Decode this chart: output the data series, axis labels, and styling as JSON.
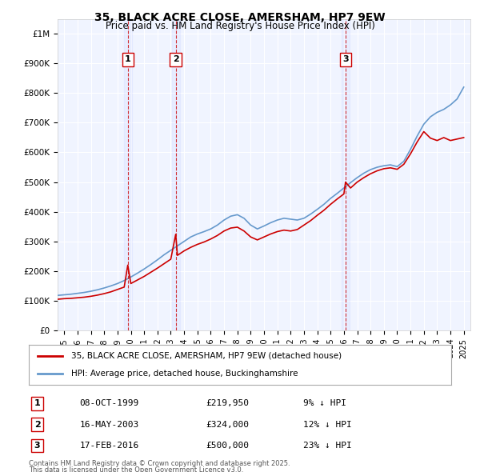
{
  "title": "35, BLACK ACRE CLOSE, AMERSHAM, HP7 9EW",
  "subtitle": "Price paid vs. HM Land Registry's House Price Index (HPI)",
  "legend_line1": "35, BLACK ACRE CLOSE, AMERSHAM, HP7 9EW (detached house)",
  "legend_line2": "HPI: Average price, detached house, Buckinghamshire",
  "footer1": "Contains HM Land Registry data © Crown copyright and database right 2025.",
  "footer2": "This data is licensed under the Open Government Licence v3.0.",
  "transaction_labels": [
    {
      "num": "1",
      "date": "08-OCT-1999",
      "price": "£219,950",
      "hpi": "9% ↓ HPI"
    },
    {
      "num": "2",
      "date": "16-MAY-2003",
      "price": "£324,000",
      "hpi": "12% ↓ HPI"
    },
    {
      "num": "3",
      "date": "17-FEB-2016",
      "price": "£500,000",
      "hpi": "23% ↓ HPI"
    }
  ],
  "transaction_dates": [
    1999.77,
    2003.37,
    2016.12
  ],
  "transaction_prices": [
    219950,
    324000,
    500000
  ],
  "red_line_color": "#cc0000",
  "blue_line_color": "#6699cc",
  "background_color": "#ffffff",
  "plot_bg_color": "#f0f4ff",
  "grid_color": "#ffffff",
  "dashed_line_color": "#cc0000",
  "ylim": [
    0,
    1050000
  ],
  "xlim": [
    1994.5,
    2025.5
  ],
  "yticks": [
    0,
    100000,
    200000,
    300000,
    400000,
    500000,
    600000,
    700000,
    800000,
    900000,
    1000000
  ],
  "ytick_labels": [
    "£0",
    "£100K",
    "£200K",
    "£300K",
    "£400K",
    "£500K",
    "£600K",
    "£700K",
    "£800K",
    "£900K",
    "£1M"
  ],
  "xticks": [
    1995,
    1996,
    1997,
    1998,
    1999,
    2000,
    2001,
    2002,
    2003,
    2004,
    2005,
    2006,
    2007,
    2008,
    2009,
    2010,
    2011,
    2012,
    2013,
    2014,
    2015,
    2016,
    2017,
    2018,
    2019,
    2020,
    2021,
    2022,
    2023,
    2024,
    2025
  ],
  "hpi_x": [
    1994.5,
    1995.0,
    1995.5,
    1996.0,
    1996.5,
    1997.0,
    1997.5,
    1998.0,
    1998.5,
    1999.0,
    1999.5,
    2000.0,
    2000.5,
    2001.0,
    2001.5,
    2002.0,
    2002.5,
    2003.0,
    2003.5,
    2004.0,
    2004.5,
    2005.0,
    2005.5,
    2006.0,
    2006.5,
    2007.0,
    2007.5,
    2008.0,
    2008.5,
    2009.0,
    2009.5,
    2010.0,
    2010.5,
    2011.0,
    2011.5,
    2012.0,
    2012.5,
    2013.0,
    2013.5,
    2014.0,
    2014.5,
    2015.0,
    2015.5,
    2016.0,
    2016.5,
    2017.0,
    2017.5,
    2018.0,
    2018.5,
    2019.0,
    2019.5,
    2020.0,
    2020.5,
    2021.0,
    2021.5,
    2022.0,
    2022.5,
    2023.0,
    2023.5,
    2024.0,
    2024.5,
    2025.0
  ],
  "hpi_y": [
    118000,
    120000,
    122000,
    125000,
    128000,
    132000,
    137000,
    143000,
    150000,
    158000,
    168000,
    180000,
    193000,
    207000,
    222000,
    238000,
    255000,
    270000,
    285000,
    300000,
    315000,
    325000,
    333000,
    342000,
    355000,
    372000,
    385000,
    390000,
    378000,
    355000,
    342000,
    352000,
    363000,
    372000,
    378000,
    375000,
    372000,
    378000,
    392000,
    408000,
    425000,
    445000,
    462000,
    480000,
    498000,
    515000,
    530000,
    542000,
    550000,
    555000,
    558000,
    552000,
    570000,
    610000,
    655000,
    695000,
    720000,
    735000,
    745000,
    760000,
    780000,
    820000
  ],
  "red_x": [
    1994.5,
    1995.0,
    1995.5,
    1996.0,
    1996.5,
    1997.0,
    1997.5,
    1998.0,
    1998.5,
    1999.0,
    1999.5,
    1999.77,
    2000.0,
    2000.5,
    2001.0,
    2001.5,
    2002.0,
    2002.5,
    2003.0,
    2003.37,
    2003.5,
    2004.0,
    2004.5,
    2005.0,
    2005.5,
    2006.0,
    2006.5,
    2007.0,
    2007.5,
    2008.0,
    2008.5,
    2009.0,
    2009.5,
    2010.0,
    2010.5,
    2011.0,
    2011.5,
    2012.0,
    2012.5,
    2013.0,
    2013.5,
    2014.0,
    2014.5,
    2015.0,
    2015.5,
    2016.0,
    2016.12,
    2016.5,
    2017.0,
    2017.5,
    2018.0,
    2018.5,
    2019.0,
    2019.5,
    2020.0,
    2020.5,
    2021.0,
    2021.5,
    2022.0,
    2022.5,
    2023.0,
    2023.5,
    2024.0,
    2024.5,
    2025.0
  ],
  "red_y": [
    105000,
    107000,
    108000,
    110000,
    112000,
    115000,
    119000,
    124000,
    130000,
    138000,
    146000,
    219950,
    158000,
    170000,
    182000,
    196000,
    210000,
    225000,
    240000,
    324000,
    253000,
    268000,
    280000,
    290000,
    298000,
    308000,
    320000,
    335000,
    345000,
    348000,
    335000,
    315000,
    305000,
    315000,
    325000,
    333000,
    338000,
    335000,
    340000,
    355000,
    370000,
    388000,
    405000,
    425000,
    443000,
    460000,
    500000,
    480000,
    500000,
    515000,
    528000,
    538000,
    545000,
    548000,
    543000,
    560000,
    595000,
    635000,
    670000,
    648000,
    640000,
    650000,
    640000,
    645000,
    650000
  ]
}
